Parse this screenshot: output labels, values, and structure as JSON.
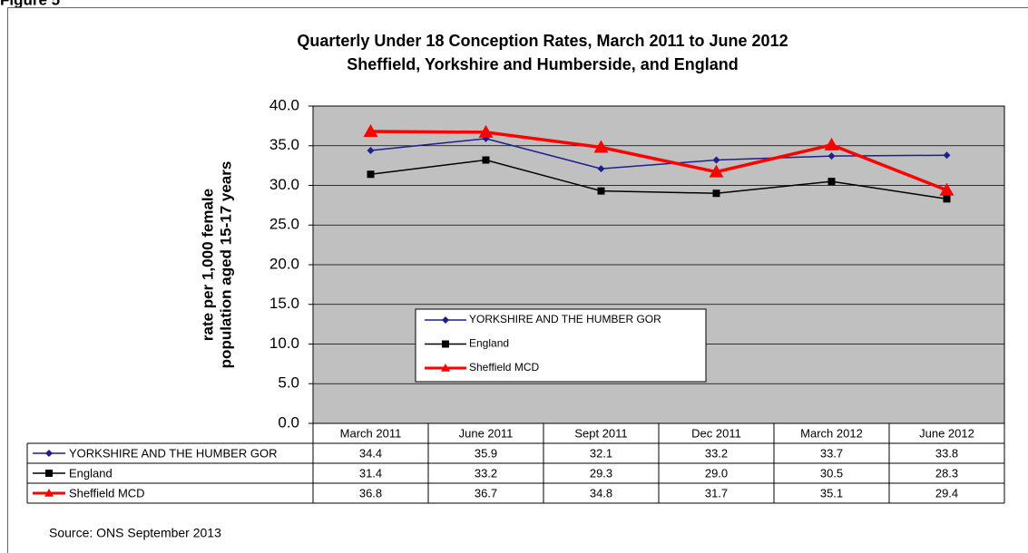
{
  "figure_label": "Figure 5",
  "source": "Source: ONS September 2013",
  "chart_data": {
    "type": "line",
    "title": "Quarterly Under 18 Conception Rates, March 2011 to June 2012",
    "subtitle": "Sheffield, Yorkshire and Humberside, and England",
    "y_label": [
      "rate per 1,000 female",
      "population  aged 15-17 years"
    ],
    "categories": [
      "March 2011",
      "June 2011",
      "Sept 2011",
      "Dec 2011",
      "March 2012",
      "June 2012"
    ],
    "series": [
      {
        "name": "YORKSHIRE AND THE HUMBER GOR",
        "color": "#1f1f8c",
        "marker": "diamond",
        "values": [
          34.4,
          35.9,
          32.1,
          33.2,
          33.7,
          33.8
        ],
        "value_labels": [
          "34.4",
          "35.9",
          "32.1",
          "33.2",
          "33.7",
          "33.8"
        ]
      },
      {
        "name": "England",
        "color": "#000000",
        "marker": "square",
        "values": [
          31.4,
          33.2,
          29.3,
          29.0,
          30.5,
          28.3
        ],
        "value_labels": [
          "31.4",
          "33.2",
          "29.3",
          "29.0",
          "30.5",
          "28.3"
        ]
      },
      {
        "name": "Sheffield MCD",
        "color": "#ff0000",
        "marker": "triangle",
        "values": [
          36.8,
          36.7,
          34.8,
          31.7,
          35.1,
          29.4
        ],
        "value_labels": [
          "36.8",
          "36.7",
          "34.8",
          "31.7",
          "35.1",
          "29.4"
        ]
      }
    ],
    "ylim": [
      0,
      40
    ],
    "yticks": [
      {
        "value": 0,
        "label": "0.0"
      },
      {
        "value": 5,
        "label": "5.0"
      },
      {
        "value": 10,
        "label": "10.0"
      },
      {
        "value": 15,
        "label": "15.0"
      },
      {
        "value": 20,
        "label": "20.0"
      },
      {
        "value": 25,
        "label": "25.0"
      },
      {
        "value": 30,
        "label": "30.0"
      },
      {
        "value": 35,
        "label": "35.0"
      },
      {
        "value": 40,
        "label": "40.0"
      }
    ],
    "grid": true,
    "data_table": true
  }
}
